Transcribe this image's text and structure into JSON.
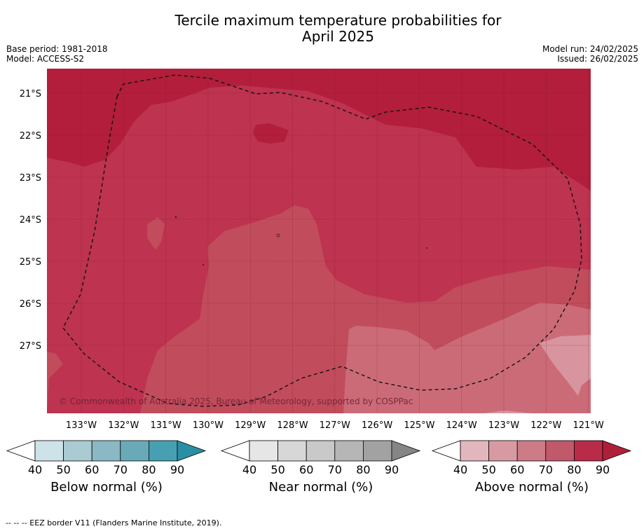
{
  "title_line1": "Tercile maximum temperature probabilities for",
  "title_line2": "April 2025",
  "base_period": "Base period: 1981-2018",
  "model": "Model: ACCESS-S2",
  "model_run": "Model run: 24/02/2025",
  "issued": "Issued: 26/02/2025",
  "copyright": "© Commonwealth of Australia 2025, Bureau of Meteorology, supported by COSPPac",
  "footnote": "--  --  -- EEZ border V11 (Flanders Marine Institute, 2019).",
  "lat_labels": [
    "21°S",
    "22°S",
    "23°S",
    "24°S",
    "25°S",
    "26°S",
    "27°S"
  ],
  "lon_labels": [
    "133°W",
    "132°W",
    "131°W",
    "130°W",
    "129°W",
    "128°W",
    "127°W",
    "126°W",
    "125°W",
    "124°W",
    "123°W",
    "122°W",
    "121°W"
  ],
  "colorbars": [
    {
      "label": "Below normal (%)",
      "ticks": [
        "40",
        "50",
        "60",
        "70",
        "80",
        "90"
      ],
      "colors": [
        "#ffffff",
        "#cde3e8",
        "#aacbd2",
        "#8ab9c5",
        "#6aaab8",
        "#47a0b2",
        "#2a8fa5"
      ]
    },
    {
      "label": "Near normal (%)",
      "ticks": [
        "40",
        "50",
        "60",
        "70",
        "80",
        "90"
      ],
      "colors": [
        "#ffffff",
        "#e6e6e6",
        "#d7d7d7",
        "#c9c9c9",
        "#b6b6b6",
        "#a2a2a2",
        "#858585"
      ]
    },
    {
      "label": "Above normal (%)",
      "ticks": [
        "40",
        "50",
        "60",
        "70",
        "80",
        "90"
      ],
      "colors": [
        "#ffffff",
        "#e3b6bd",
        "#d89aa2",
        "#cc7c86",
        "#c0596a",
        "#b92c47",
        "#b01f3a"
      ]
    }
  ],
  "map_colors": {
    "c90": "#b21e3b",
    "c80": "#bd3350",
    "c70": "#c14c5c",
    "c60": "#cc6b78",
    "c50": "#d9959f"
  }
}
